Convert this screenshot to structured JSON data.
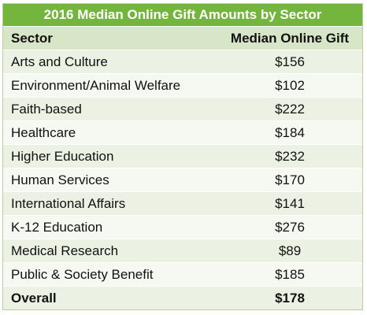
{
  "title": "2016 Median Online Gift Amounts by Sector",
  "headers": {
    "sector": "Sector",
    "gift": "Median Online Gift"
  },
  "rows": [
    {
      "sector": "Arts and Culture",
      "gift": "$156"
    },
    {
      "sector": "Environment/Animal Welfare",
      "gift": "$102"
    },
    {
      "sector": "Faith-based",
      "gift": "$222"
    },
    {
      "sector": "Healthcare",
      "gift": "$184"
    },
    {
      "sector": "Higher Education",
      "gift": "$232"
    },
    {
      "sector": "Human Services",
      "gift": "$170"
    },
    {
      "sector": "International Affairs",
      "gift": "$141"
    },
    {
      "sector": "K-12 Education",
      "gift": "$276"
    },
    {
      "sector": "Medical Research",
      "gift": "$89"
    },
    {
      "sector": "Public & Society Benefit",
      "gift": "$185"
    }
  ],
  "overall": {
    "sector": "Overall",
    "gift": "$178"
  },
  "colors": {
    "title_bg": "#74b53d",
    "header_bg": "#d6e6c6",
    "row_odd_bg": "#ebf2e3",
    "row_even_bg": "#f6f9f2"
  }
}
